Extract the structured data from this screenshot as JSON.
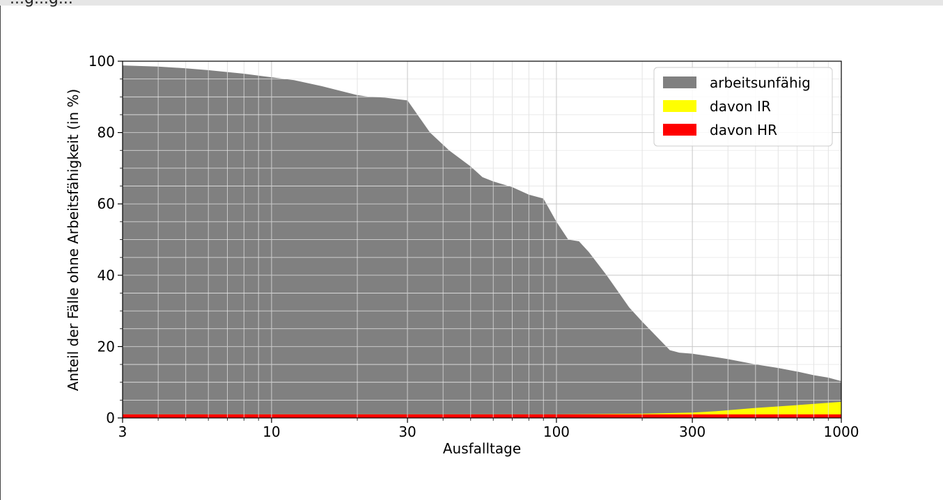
{
  "header": {
    "partial_title": "...g...g..."
  },
  "chart_data": {
    "type": "area",
    "title": "",
    "xlabel": "Ausfalltage",
    "ylabel": "Anteil der Fälle ohne Arbeitsfähigkeit (in %)",
    "x_scale": "log",
    "xlim": [
      3,
      1000
    ],
    "ylim": [
      0,
      100
    ],
    "x_ticks": [
      3,
      10,
      30,
      100,
      300,
      1000
    ],
    "x_tick_labels": [
      "3",
      "10",
      "30",
      "100",
      "300",
      "1000"
    ],
    "y_ticks": [
      0,
      20,
      40,
      60,
      80,
      100
    ],
    "y_tick_labels": [
      "0",
      "20",
      "40",
      "60",
      "80",
      "100"
    ],
    "grid": true,
    "legend_position": "top-right",
    "series": [
      {
        "name": "arbeitsunfähig",
        "color": "#808080",
        "x": [
          3,
          4,
          5,
          6,
          8,
          10,
          12,
          15,
          20,
          22,
          25,
          30,
          36,
          42,
          50,
          55,
          60,
          70,
          80,
          90,
          100,
          110,
          120,
          130,
          150,
          180,
          200,
          250,
          270,
          300,
          365,
          400,
          500,
          600,
          700,
          800,
          900,
          1000
        ],
        "values": [
          98.8,
          98.5,
          98,
          97.5,
          96.5,
          95.5,
          94.7,
          93,
          90.5,
          90,
          89.8,
          89,
          80,
          75,
          70.5,
          67.5,
          66.3,
          64.7,
          62.6,
          61.5,
          55,
          50,
          49.5,
          46.5,
          40,
          31,
          27,
          19,
          18.3,
          18,
          17,
          16.5,
          15,
          14,
          13,
          12,
          11.3,
          10.3
        ]
      },
      {
        "name": "davon IR",
        "color": "#ffff00",
        "x": [
          3,
          100,
          200,
          300,
          365,
          500,
          700,
          1000
        ],
        "values": [
          1.0,
          1.0,
          1.2,
          1.5,
          1.9,
          2.8,
          3.6,
          4.5
        ]
      },
      {
        "name": "davon HR",
        "color": "#ff0000",
        "x": [
          3,
          1000
        ],
        "values": [
          1.0,
          1.0
        ]
      }
    ]
  }
}
